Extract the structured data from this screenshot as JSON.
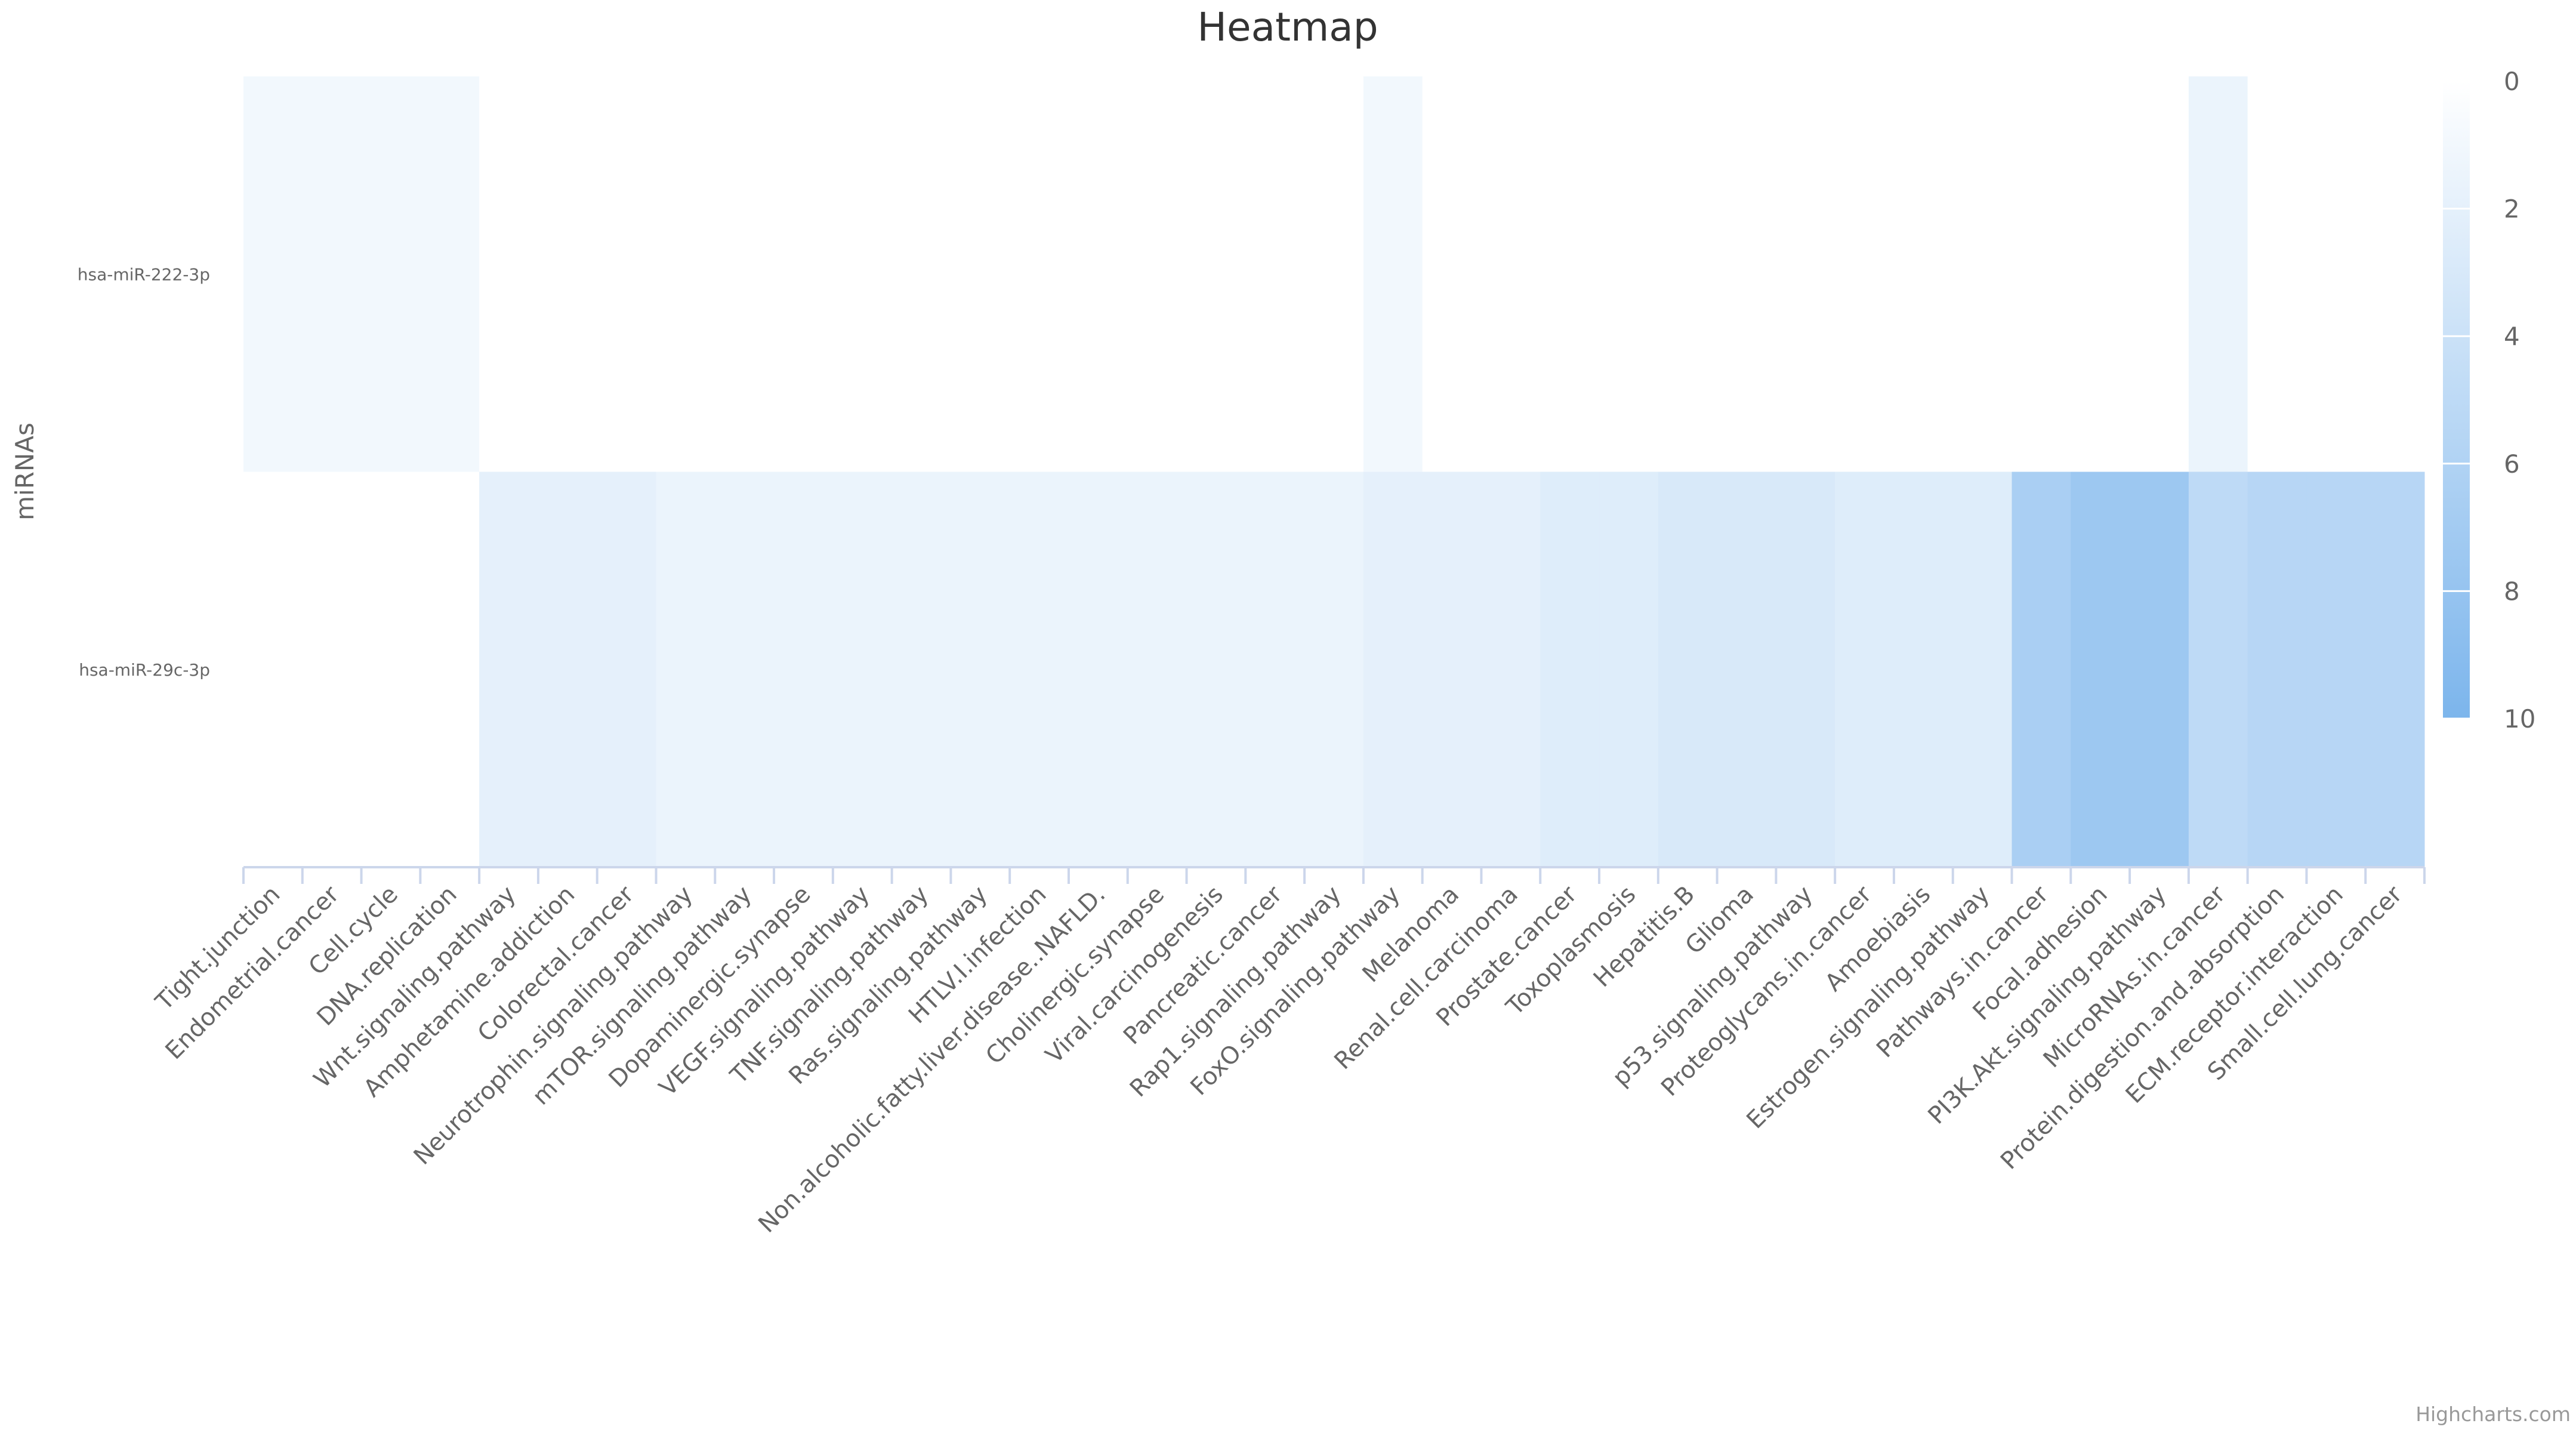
{
  "chart_data": {
    "type": "heatmap",
    "title": "Heatmap",
    "ylabel": "miRNAs",
    "xlabel": "",
    "x_categories": [
      "Tight.junction",
      "Endometrial.cancer",
      "Cell.cycle",
      "DNA.replication",
      "Wnt.signaling.pathway",
      "Amphetamine.addiction",
      "Colorectal.cancer",
      "Neurotrophin.signaling.pathway",
      "mTOR.signaling.pathway",
      "Dopaminergic.synapse",
      "VEGF.signaling.pathway",
      "TNF.signaling.pathway",
      "Ras.signaling.pathway",
      "HTLV.I.infection",
      "Non.alcoholic.fatty.liver.disease..NAFLD.",
      "Cholinergic.synapse",
      "Viral.carcinogenesis",
      "Pancreatic.cancer",
      "Rap1.signaling.pathway",
      "FoxO.signaling.pathway",
      "Melanoma",
      "Renal.cell.carcinoma",
      "Prostate.cancer",
      "Toxoplasmosis",
      "Hepatitis.B",
      "Glioma",
      "p53.signaling.pathway",
      "Proteoglycans.in.cancer",
      "Amoebiasis",
      "Estrogen.signaling.pathway",
      "Pathways.in.cancer",
      "Focal.adhesion",
      "PI3K.Akt.signaling.pathway",
      "MicroRNAs.in.cancer",
      "Protein.digestion.and.absorption",
      "ECM.receptor.interaction",
      "Small.cell.lung.cancer"
    ],
    "y_categories": [
      "hsa-miR-222-3p",
      "hsa-miR-29c-3p"
    ],
    "values": [
      [
        1,
        1,
        1,
        1,
        0,
        0,
        0,
        0,
        0,
        0,
        0,
        0,
        0,
        0,
        0,
        0,
        0,
        0,
        0,
        1,
        0,
        0,
        0,
        0,
        0,
        0,
        0,
        0,
        0,
        0,
        0,
        0,
        0,
        1.5,
        0,
        0,
        0
      ],
      [
        0,
        0,
        0,
        0,
        2,
        2,
        2,
        1.5,
        1.5,
        1.5,
        1.5,
        1.5,
        1.5,
        1.5,
        1.5,
        1.5,
        1.5,
        1.5,
        1.5,
        2,
        2,
        2,
        2.5,
        2.5,
        3,
        3,
        3,
        2.5,
        2.5,
        2.5,
        6.5,
        7.5,
        7.5,
        5,
        5.5,
        5.5,
        5.5
      ]
    ],
    "color_axis": {
      "min": 0,
      "max": 10,
      "min_color": "#ffffff",
      "max_color": "#7cb5ec",
      "ticks": [
        "0",
        "2",
        "4",
        "6",
        "8",
        "10"
      ]
    },
    "legend_position": "right",
    "grid": false
  },
  "credits": "Highcharts.com"
}
